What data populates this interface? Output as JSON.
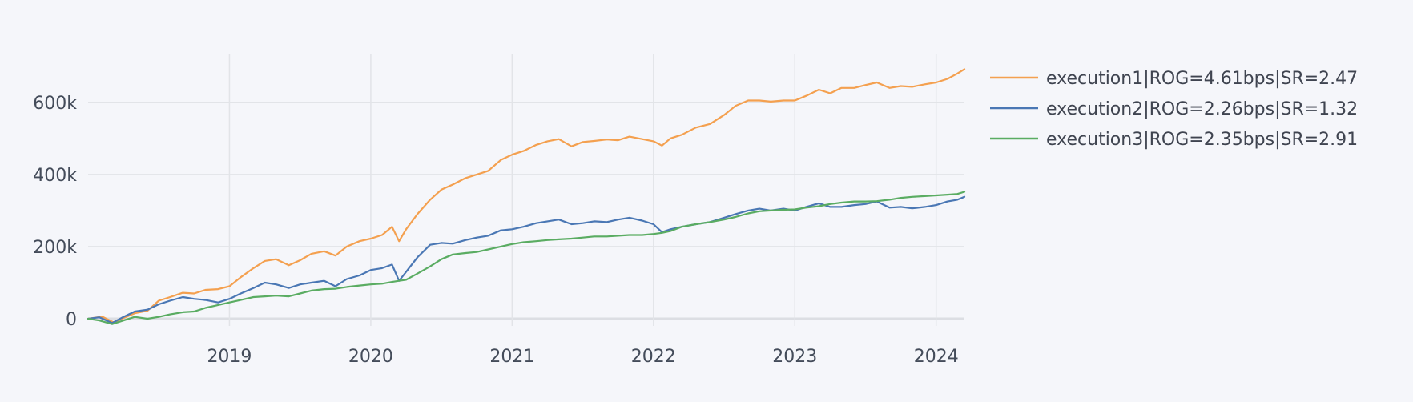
{
  "chart_data": {
    "type": "line",
    "title": "",
    "xlabel": "",
    "ylabel": "",
    "x_range": [
      2018.0,
      2024.2
    ],
    "ylim": [
      -20000,
      735000
    ],
    "x_ticks": [
      {
        "value": 2019,
        "label": "2019"
      },
      {
        "value": 2020,
        "label": "2020"
      },
      {
        "value": 2021,
        "label": "2021"
      },
      {
        "value": 2022,
        "label": "2022"
      },
      {
        "value": 2023,
        "label": "2023"
      },
      {
        "value": 2024,
        "label": "2024"
      }
    ],
    "y_ticks": [
      {
        "value": 0,
        "label": "0"
      },
      {
        "value": 200000,
        "label": "200k"
      },
      {
        "value": 400000,
        "label": "400k"
      },
      {
        "value": 600000,
        "label": "600k"
      }
    ],
    "grid": true,
    "legend_position": "top-right, outside plot",
    "series": [
      {
        "name": "execution1|ROG=4.61bps|SR=2.47",
        "color": "#f4a04f",
        "points": [
          [
            2018.0,
            0
          ],
          [
            2018.1,
            6000
          ],
          [
            2018.18,
            -10000
          ],
          [
            2018.25,
            2000
          ],
          [
            2018.33,
            15000
          ],
          [
            2018.42,
            22000
          ],
          [
            2018.5,
            50000
          ],
          [
            2018.58,
            60000
          ],
          [
            2018.67,
            72000
          ],
          [
            2018.75,
            70000
          ],
          [
            2018.83,
            80000
          ],
          [
            2018.92,
            82000
          ],
          [
            2019.0,
            90000
          ],
          [
            2019.08,
            115000
          ],
          [
            2019.17,
            140000
          ],
          [
            2019.25,
            160000
          ],
          [
            2019.33,
            165000
          ],
          [
            2019.42,
            148000
          ],
          [
            2019.5,
            162000
          ],
          [
            2019.58,
            180000
          ],
          [
            2019.67,
            187000
          ],
          [
            2019.75,
            175000
          ],
          [
            2019.83,
            200000
          ],
          [
            2019.92,
            215000
          ],
          [
            2020.0,
            222000
          ],
          [
            2020.08,
            232000
          ],
          [
            2020.15,
            255000
          ],
          [
            2020.2,
            215000
          ],
          [
            2020.25,
            248000
          ],
          [
            2020.33,
            290000
          ],
          [
            2020.42,
            330000
          ],
          [
            2020.5,
            358000
          ],
          [
            2020.58,
            372000
          ],
          [
            2020.67,
            390000
          ],
          [
            2020.75,
            400000
          ],
          [
            2020.83,
            410000
          ],
          [
            2020.92,
            440000
          ],
          [
            2021.0,
            455000
          ],
          [
            2021.08,
            465000
          ],
          [
            2021.17,
            482000
          ],
          [
            2021.25,
            492000
          ],
          [
            2021.33,
            498000
          ],
          [
            2021.42,
            478000
          ],
          [
            2021.5,
            490000
          ],
          [
            2021.58,
            493000
          ],
          [
            2021.67,
            497000
          ],
          [
            2021.75,
            495000
          ],
          [
            2021.83,
            505000
          ],
          [
            2021.92,
            498000
          ],
          [
            2022.0,
            492000
          ],
          [
            2022.06,
            480000
          ],
          [
            2022.12,
            500000
          ],
          [
            2022.2,
            510000
          ],
          [
            2022.3,
            530000
          ],
          [
            2022.4,
            540000
          ],
          [
            2022.5,
            565000
          ],
          [
            2022.58,
            590000
          ],
          [
            2022.67,
            605000
          ],
          [
            2022.75,
            605000
          ],
          [
            2022.83,
            602000
          ],
          [
            2022.92,
            605000
          ],
          [
            2023.0,
            605000
          ],
          [
            2023.08,
            618000
          ],
          [
            2023.17,
            635000
          ],
          [
            2023.25,
            625000
          ],
          [
            2023.33,
            640000
          ],
          [
            2023.42,
            640000
          ],
          [
            2023.5,
            648000
          ],
          [
            2023.58,
            655000
          ],
          [
            2023.67,
            640000
          ],
          [
            2023.75,
            645000
          ],
          [
            2023.83,
            643000
          ],
          [
            2023.92,
            650000
          ],
          [
            2024.0,
            655000
          ],
          [
            2024.08,
            665000
          ],
          [
            2024.15,
            680000
          ],
          [
            2024.2,
            692000
          ]
        ]
      },
      {
        "name": "execution2|ROG=2.26bps|SR=1.32",
        "color": "#4a77b4",
        "points": [
          [
            2018.0,
            0
          ],
          [
            2018.08,
            4000
          ],
          [
            2018.17,
            -12000
          ],
          [
            2018.25,
            5000
          ],
          [
            2018.33,
            20000
          ],
          [
            2018.42,
            25000
          ],
          [
            2018.5,
            40000
          ],
          [
            2018.58,
            50000
          ],
          [
            2018.67,
            60000
          ],
          [
            2018.75,
            55000
          ],
          [
            2018.83,
            52000
          ],
          [
            2018.92,
            45000
          ],
          [
            2019.0,
            55000
          ],
          [
            2019.08,
            70000
          ],
          [
            2019.17,
            85000
          ],
          [
            2019.25,
            100000
          ],
          [
            2019.33,
            95000
          ],
          [
            2019.42,
            85000
          ],
          [
            2019.5,
            95000
          ],
          [
            2019.58,
            100000
          ],
          [
            2019.67,
            105000
          ],
          [
            2019.75,
            90000
          ],
          [
            2019.83,
            110000
          ],
          [
            2019.92,
            120000
          ],
          [
            2020.0,
            135000
          ],
          [
            2020.08,
            140000
          ],
          [
            2020.15,
            150000
          ],
          [
            2020.2,
            105000
          ],
          [
            2020.25,
            130000
          ],
          [
            2020.33,
            170000
          ],
          [
            2020.42,
            205000
          ],
          [
            2020.5,
            210000
          ],
          [
            2020.58,
            208000
          ],
          [
            2020.67,
            218000
          ],
          [
            2020.75,
            225000
          ],
          [
            2020.83,
            230000
          ],
          [
            2020.92,
            245000
          ],
          [
            2021.0,
            248000
          ],
          [
            2021.08,
            255000
          ],
          [
            2021.17,
            265000
          ],
          [
            2021.25,
            270000
          ],
          [
            2021.33,
            275000
          ],
          [
            2021.42,
            262000
          ],
          [
            2021.5,
            265000
          ],
          [
            2021.58,
            270000
          ],
          [
            2021.67,
            268000
          ],
          [
            2021.75,
            275000
          ],
          [
            2021.83,
            280000
          ],
          [
            2021.92,
            272000
          ],
          [
            2022.0,
            262000
          ],
          [
            2022.06,
            240000
          ],
          [
            2022.12,
            248000
          ],
          [
            2022.2,
            255000
          ],
          [
            2022.3,
            262000
          ],
          [
            2022.4,
            268000
          ],
          [
            2022.5,
            280000
          ],
          [
            2022.58,
            290000
          ],
          [
            2022.67,
            300000
          ],
          [
            2022.75,
            305000
          ],
          [
            2022.83,
            300000
          ],
          [
            2022.92,
            305000
          ],
          [
            2023.0,
            300000
          ],
          [
            2023.08,
            310000
          ],
          [
            2023.17,
            320000
          ],
          [
            2023.25,
            310000
          ],
          [
            2023.33,
            310000
          ],
          [
            2023.42,
            315000
          ],
          [
            2023.5,
            318000
          ],
          [
            2023.58,
            325000
          ],
          [
            2023.67,
            308000
          ],
          [
            2023.75,
            310000
          ],
          [
            2023.83,
            306000
          ],
          [
            2023.92,
            310000
          ],
          [
            2024.0,
            315000
          ],
          [
            2024.08,
            325000
          ],
          [
            2024.15,
            330000
          ],
          [
            2024.2,
            338000
          ]
        ]
      },
      {
        "name": "execution3|ROG=2.35bps|SR=2.91",
        "color": "#5aac62",
        "points": [
          [
            2018.0,
            0
          ],
          [
            2018.08,
            -5000
          ],
          [
            2018.17,
            -15000
          ],
          [
            2018.25,
            -5000
          ],
          [
            2018.33,
            5000
          ],
          [
            2018.42,
            0
          ],
          [
            2018.5,
            5000
          ],
          [
            2018.58,
            12000
          ],
          [
            2018.67,
            18000
          ],
          [
            2018.75,
            20000
          ],
          [
            2018.83,
            30000
          ],
          [
            2018.92,
            38000
          ],
          [
            2019.0,
            45000
          ],
          [
            2019.08,
            52000
          ],
          [
            2019.17,
            60000
          ],
          [
            2019.25,
            62000
          ],
          [
            2019.33,
            64000
          ],
          [
            2019.42,
            62000
          ],
          [
            2019.5,
            70000
          ],
          [
            2019.58,
            78000
          ],
          [
            2019.67,
            82000
          ],
          [
            2019.75,
            83000
          ],
          [
            2019.83,
            88000
          ],
          [
            2019.92,
            92000
          ],
          [
            2020.0,
            95000
          ],
          [
            2020.08,
            97000
          ],
          [
            2020.15,
            102000
          ],
          [
            2020.2,
            105000
          ],
          [
            2020.25,
            108000
          ],
          [
            2020.33,
            125000
          ],
          [
            2020.42,
            145000
          ],
          [
            2020.5,
            165000
          ],
          [
            2020.58,
            178000
          ],
          [
            2020.67,
            182000
          ],
          [
            2020.75,
            185000
          ],
          [
            2020.83,
            192000
          ],
          [
            2020.92,
            200000
          ],
          [
            2021.0,
            207000
          ],
          [
            2021.08,
            212000
          ],
          [
            2021.17,
            215000
          ],
          [
            2021.25,
            218000
          ],
          [
            2021.33,
            220000
          ],
          [
            2021.42,
            222000
          ],
          [
            2021.5,
            225000
          ],
          [
            2021.58,
            228000
          ],
          [
            2021.67,
            228000
          ],
          [
            2021.75,
            230000
          ],
          [
            2021.83,
            232000
          ],
          [
            2021.92,
            232000
          ],
          [
            2022.0,
            235000
          ],
          [
            2022.06,
            238000
          ],
          [
            2022.12,
            243000
          ],
          [
            2022.2,
            255000
          ],
          [
            2022.3,
            262000
          ],
          [
            2022.4,
            268000
          ],
          [
            2022.5,
            275000
          ],
          [
            2022.58,
            282000
          ],
          [
            2022.67,
            292000
          ],
          [
            2022.75,
            298000
          ],
          [
            2022.83,
            300000
          ],
          [
            2022.92,
            302000
          ],
          [
            2023.0,
            303000
          ],
          [
            2023.08,
            308000
          ],
          [
            2023.17,
            312000
          ],
          [
            2023.25,
            318000
          ],
          [
            2023.33,
            322000
          ],
          [
            2023.42,
            325000
          ],
          [
            2023.5,
            325000
          ],
          [
            2023.58,
            326000
          ],
          [
            2023.67,
            330000
          ],
          [
            2023.75,
            335000
          ],
          [
            2023.83,
            338000
          ],
          [
            2023.92,
            340000
          ],
          [
            2024.0,
            342000
          ],
          [
            2024.08,
            344000
          ],
          [
            2024.15,
            346000
          ],
          [
            2024.2,
            352000
          ]
        ]
      }
    ]
  }
}
